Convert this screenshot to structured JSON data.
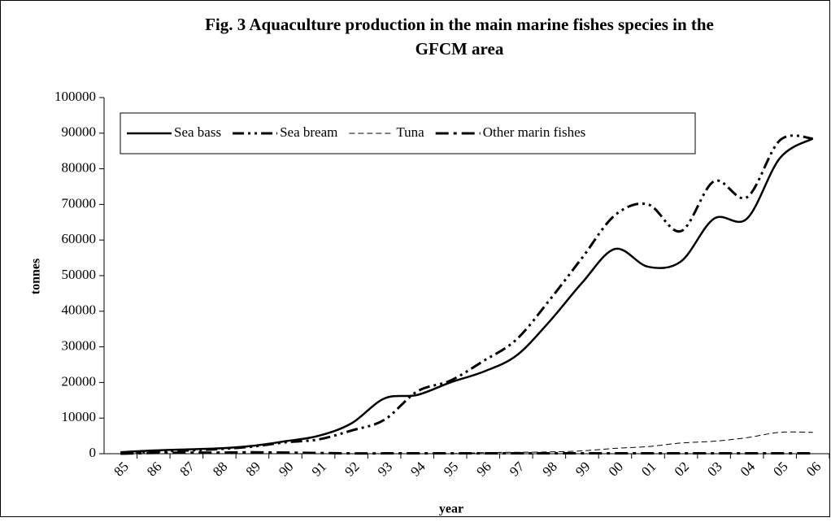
{
  "chart_data": {
    "type": "line",
    "title": "Fig. 3 Aquaculture production in the main marine fishes species in the GFCM area",
    "x_label": "year",
    "y_label": "tonnes",
    "categories": [
      "85",
      "86",
      "87",
      "88",
      "89",
      "90",
      "91",
      "92",
      "93",
      "94",
      "95",
      "96",
      "97",
      "98",
      "99",
      "00",
      "01",
      "02",
      "03",
      "04",
      "05",
      "06"
    ],
    "series": [
      {
        "name": "Sea bass",
        "color": "#000000",
        "values": [
          400,
          900,
          1200,
          1500,
          2200,
          3500,
          5000,
          8500,
          15500,
          16500,
          20000,
          23000,
          27500,
          37000,
          48000,
          57500,
          52500,
          54000,
          66000,
          66000,
          83000,
          88500
        ]
      },
      {
        "name": "Sea bream",
        "color": "#000000",
        "values": [
          200,
          600,
          900,
          1300,
          2000,
          3200,
          4000,
          6500,
          9500,
          17500,
          20500,
          26000,
          32000,
          43000,
          55000,
          67000,
          70000,
          62500,
          76500,
          72000,
          88000,
          88500
        ]
      },
      {
        "name": "Tuna",
        "color": "#000000",
        "values": [
          0,
          0,
          0,
          0,
          0,
          0,
          0,
          0,
          0,
          0,
          0,
          300,
          400,
          500,
          800,
          1500,
          2000,
          3000,
          3500,
          4500,
          6000,
          6000
        ]
      },
      {
        "name": "Other marin fishes",
        "color": "#000000",
        "values": [
          0,
          200,
          300,
          300,
          400,
          300,
          200,
          100,
          100,
          100,
          100,
          100,
          100,
          100,
          100,
          100,
          100,
          100,
          100,
          100,
          100,
          100
        ]
      }
    ],
    "ylim": [
      0,
      100000
    ],
    "yticks": [
      0,
      10000,
      20000,
      30000,
      40000,
      50000,
      60000,
      70000,
      80000,
      90000,
      100000
    ],
    "legend": "top-left"
  }
}
